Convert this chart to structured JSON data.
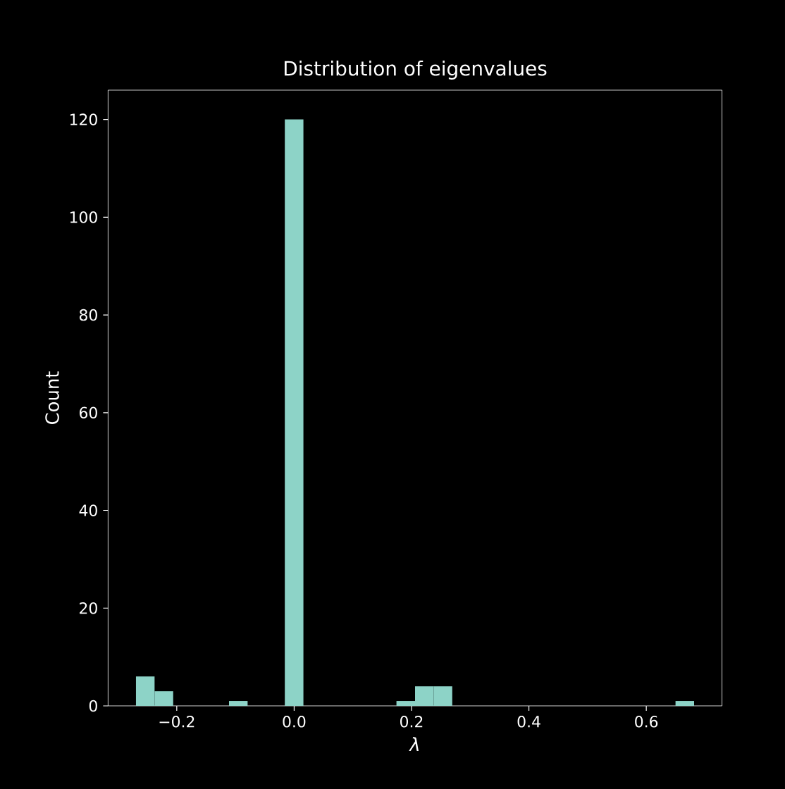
{
  "chart_data": {
    "type": "histogram",
    "title": "Distribution of eigenvalues",
    "xlabel": "λ",
    "ylabel": "Count",
    "color": "#8dd3c7",
    "bins": [
      -0.2695,
      -0.2378,
      -0.2061,
      -0.1744,
      -0.1427,
      -0.111,
      -0.0793,
      -0.0476,
      -0.0159,
      0.0158,
      0.0475,
      0.0792,
      0.1109,
      0.1426,
      0.1743,
      0.206,
      0.2377,
      0.2694,
      0.3011,
      0.3328,
      0.3645,
      0.3962,
      0.4279,
      0.4596,
      0.4913,
      0.523,
      0.5547,
      0.5864,
      0.6181,
      0.6498,
      0.6815
    ],
    "values": [
      6,
      3,
      0,
      0,
      0,
      1,
      0,
      0,
      120,
      0,
      0,
      0,
      0,
      0,
      1,
      4,
      4,
      0,
      0,
      0,
      0,
      0,
      0,
      0,
      0,
      0,
      0,
      0,
      0,
      1
    ],
    "xlim": [
      -0.317,
      0.729
    ],
    "ylim": [
      0,
      126
    ],
    "xticks": [
      {
        "value": -0.2,
        "label": "−0.2"
      },
      {
        "value": 0,
        "label": "0.0"
      },
      {
        "value": 0.2,
        "label": "0.2"
      },
      {
        "value": 0.4,
        "label": "0.4"
      },
      {
        "value": 0.6,
        "label": "0.6"
      }
    ],
    "yticks": [
      0,
      20,
      40,
      60,
      80,
      100,
      120
    ],
    "grid": false
  }
}
